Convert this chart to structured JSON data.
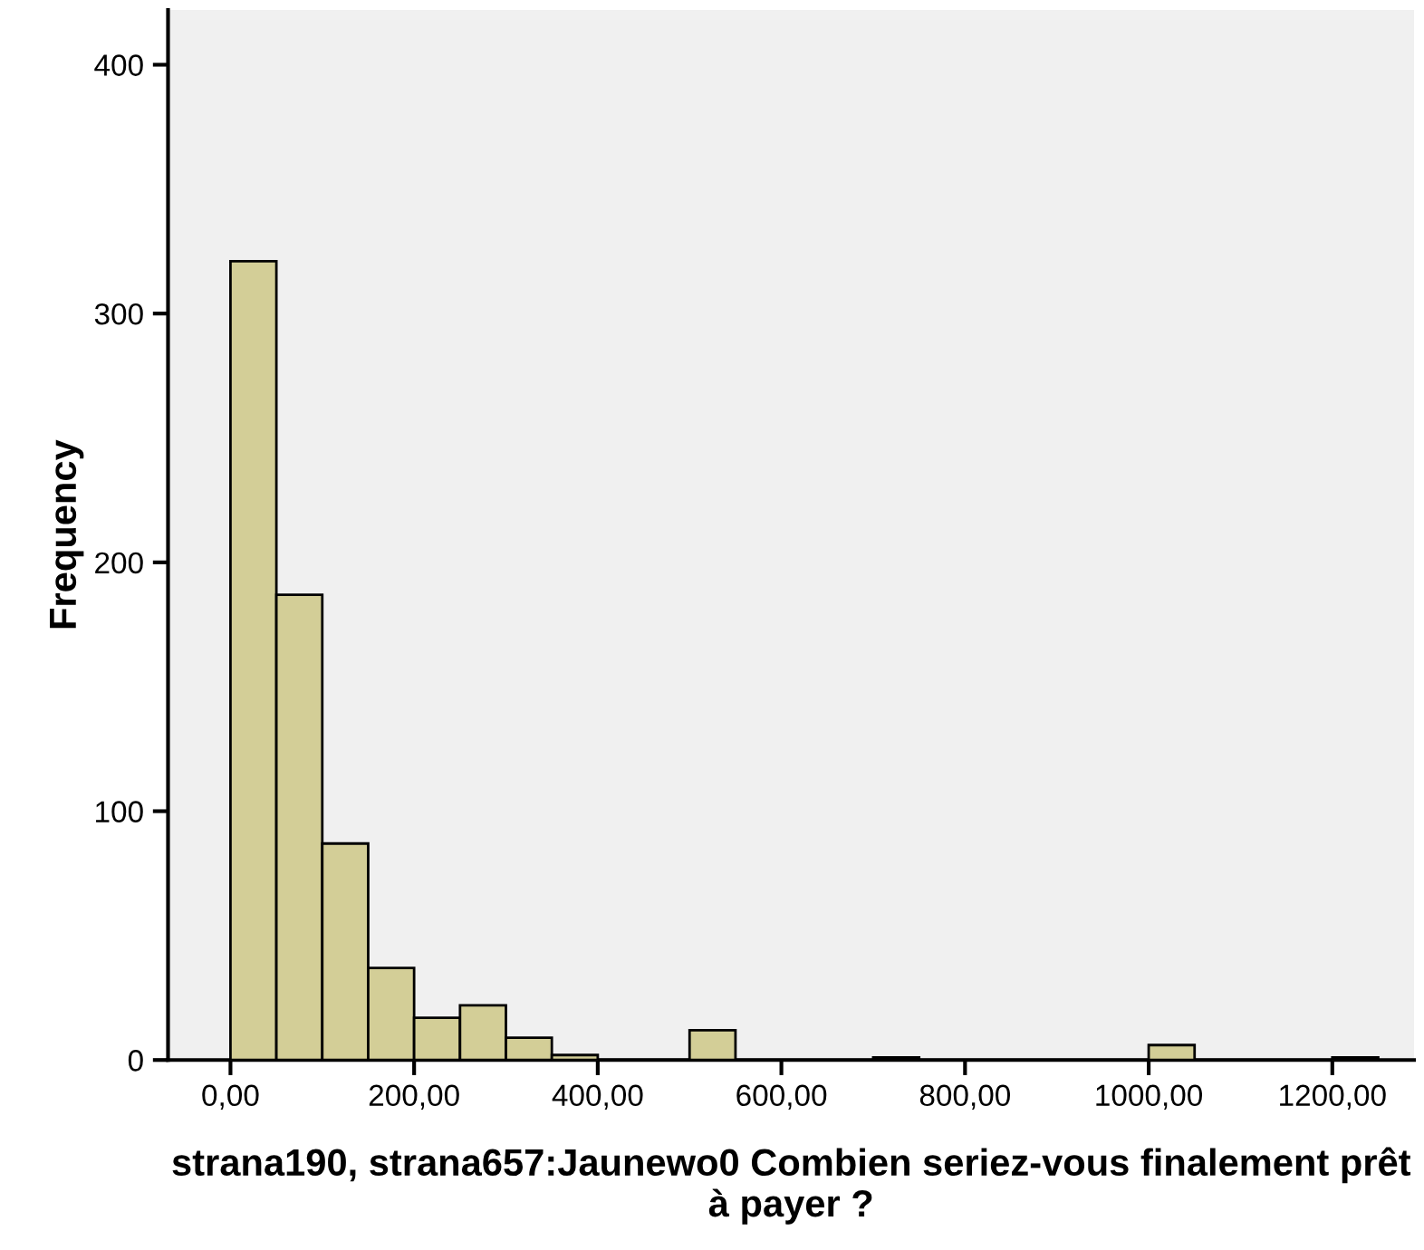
{
  "chart_data": {
    "type": "histogram",
    "xlabel": "strana190, strana657:Jaunewo0 Combien seriez-vous finalement prêt à payer ?",
    "ylabel": "Frequency",
    "bins": [
      0,
      50,
      100,
      150,
      200,
      250,
      300,
      350,
      400,
      450,
      500,
      550,
      600,
      650,
      700,
      750,
      800,
      850,
      900,
      950,
      1000,
      1050,
      1100,
      1150,
      1200,
      1250
    ],
    "values": [
      321,
      187,
      87,
      37,
      17,
      22,
      9,
      2,
      0,
      0,
      12,
      0,
      0,
      0,
      1,
      0,
      0,
      0,
      0,
      0,
      6,
      0,
      0,
      0,
      1
    ],
    "color": "#d3ce97",
    "xlim": [
      -68,
      1289
    ],
    "ylim": [
      0,
      422
    ],
    "xticks": [
      {
        "value": 0,
        "label": "0,00"
      },
      {
        "value": 200,
        "label": "200,00"
      },
      {
        "value": 400,
        "label": "400,00"
      },
      {
        "value": 600,
        "label": "600,00"
      },
      {
        "value": 800,
        "label": "800,00"
      },
      {
        "value": 1000,
        "label": "1000,00"
      },
      {
        "value": 1200,
        "label": "1200,00"
      }
    ],
    "yticks": [
      0,
      100,
      200,
      300,
      400
    ],
    "grid": false,
    "legend": false
  }
}
